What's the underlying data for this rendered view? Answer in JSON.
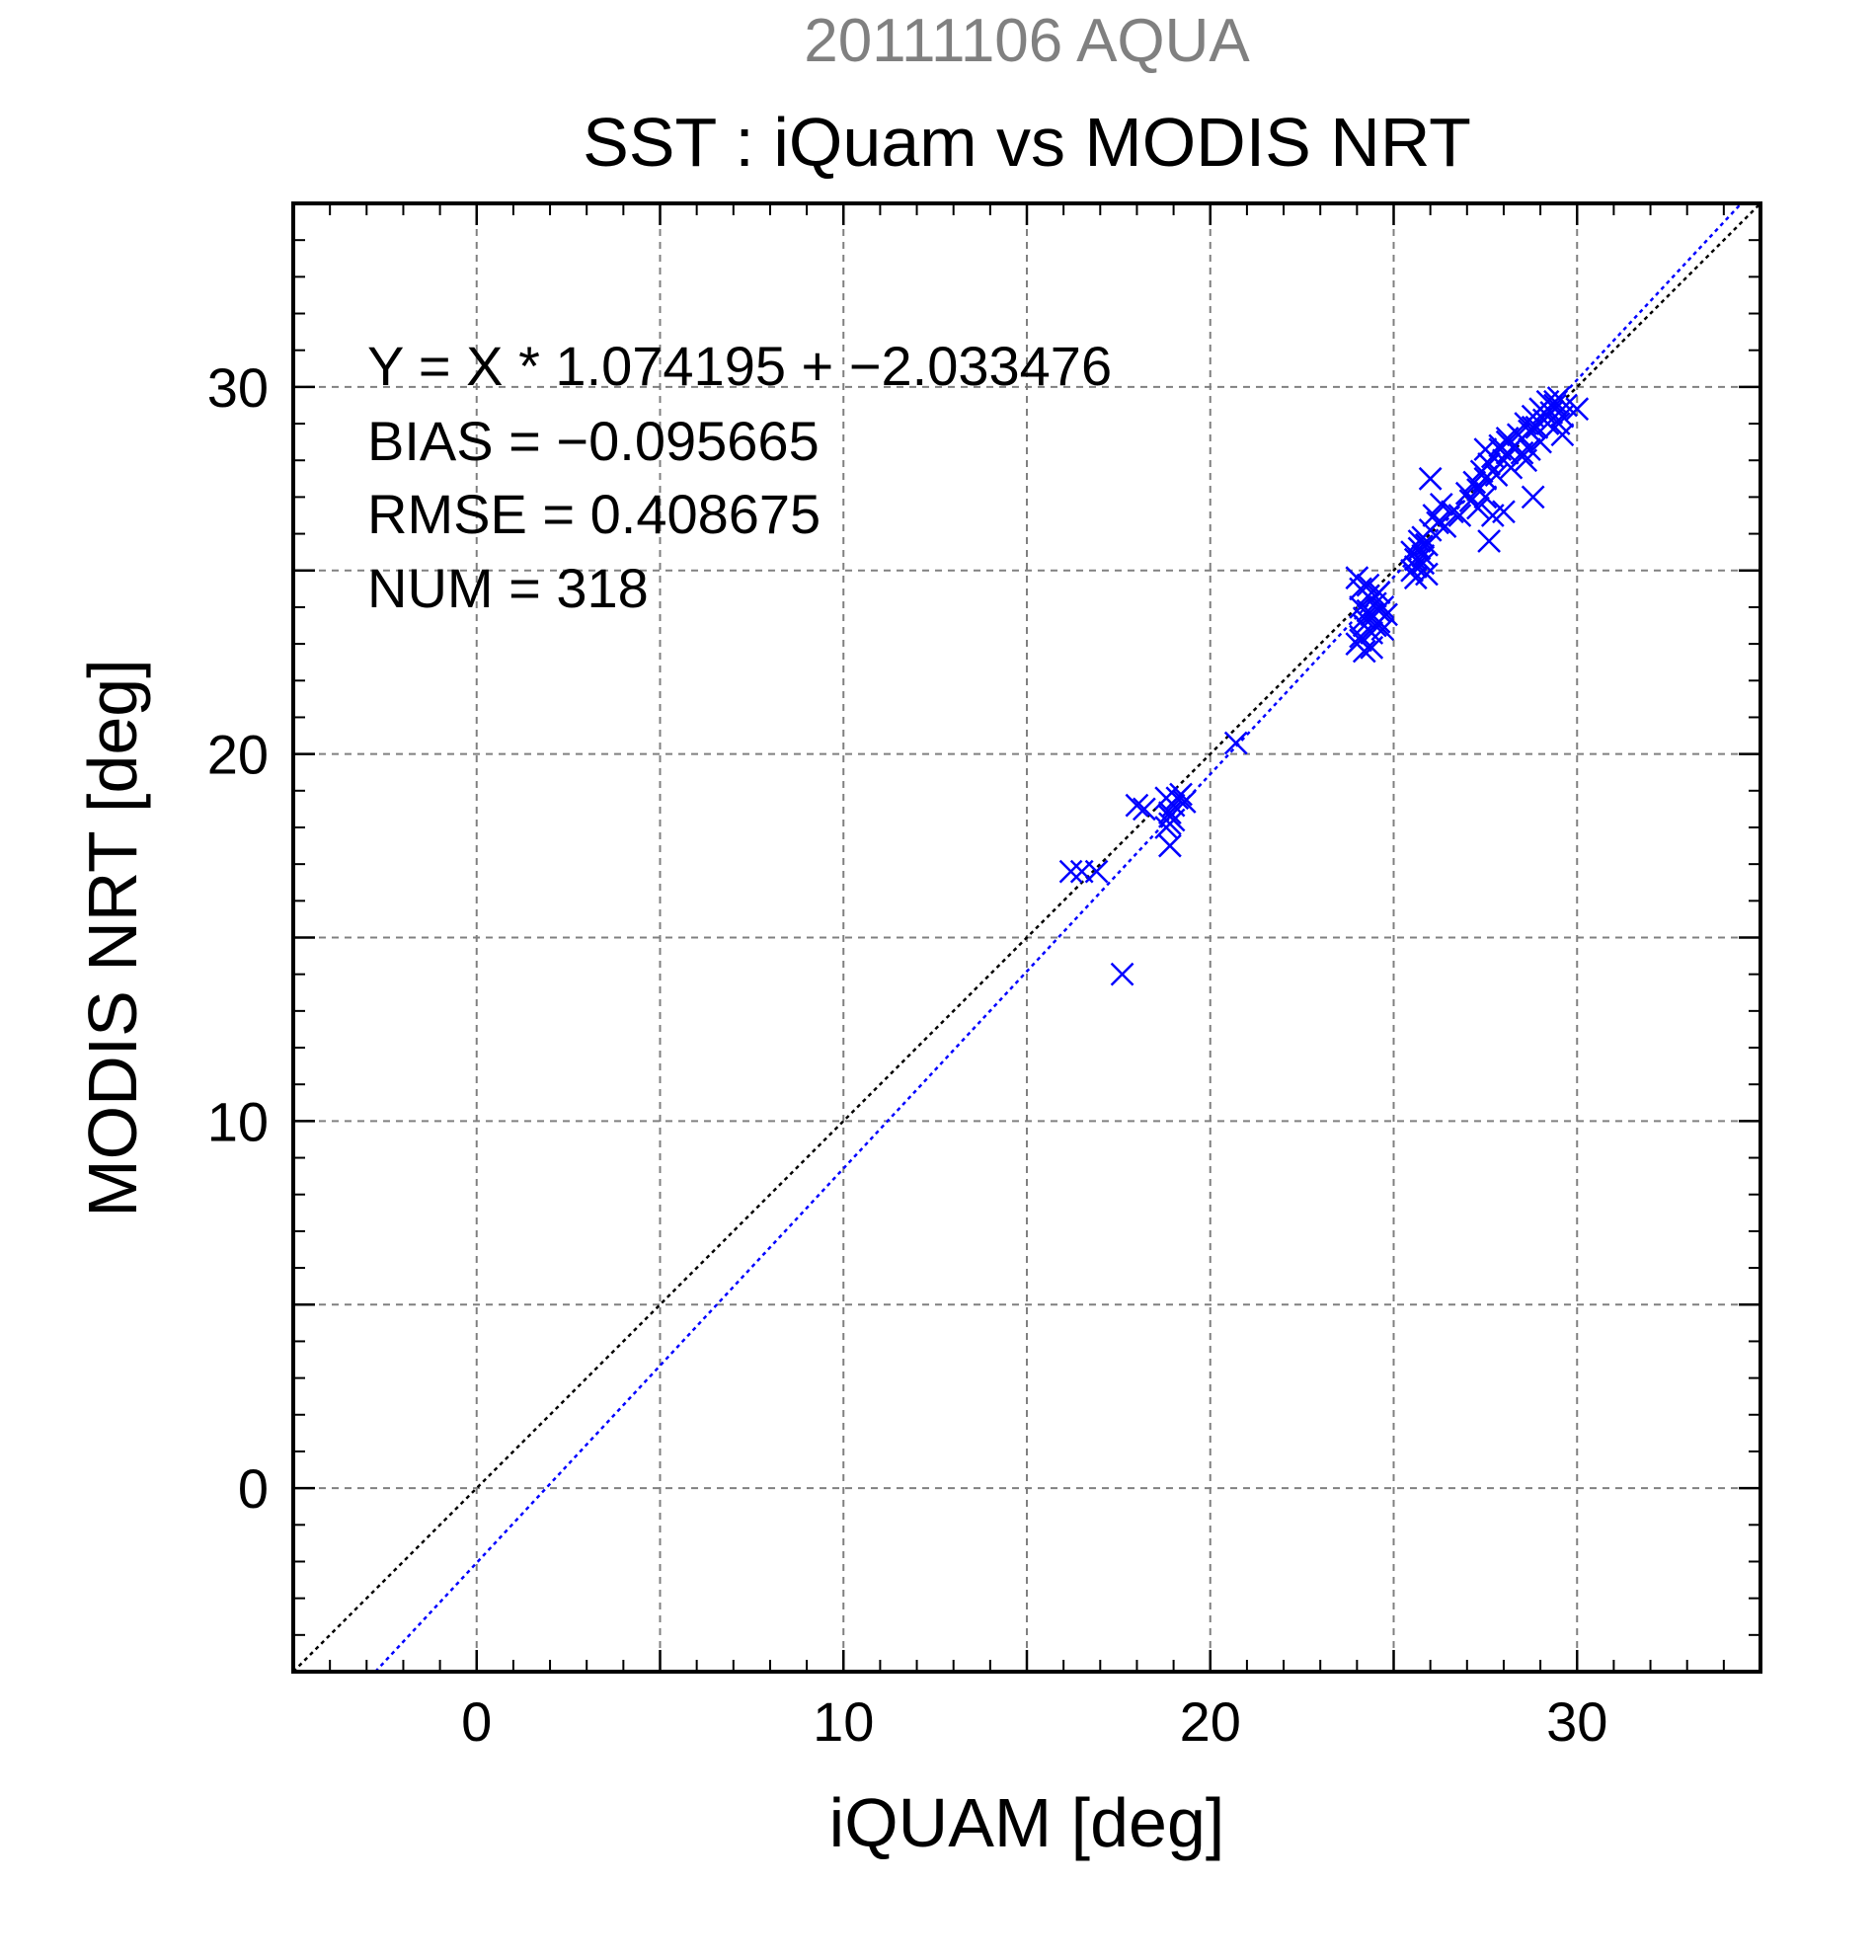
{
  "chart_data": {
    "type": "scatter",
    "title": "SST : iQuam vs MODIS NRT",
    "subtitle": "20111106 AQUA",
    "xlabel": "iQUAM [deg]",
    "ylabel": "MODIS NRT [deg]",
    "xlim": [
      -5,
      35
    ],
    "ylim": [
      -5,
      35
    ],
    "xticks": [
      0,
      10,
      20,
      30
    ],
    "yticks": [
      0,
      10,
      20,
      30
    ],
    "grid": true,
    "grid_step": 5,
    "stats": [
      "Y = X * 1.074195 + −2.033476",
      "BIAS = −0.095665",
      "RMSE = 0.408675",
      "NUM = 318"
    ],
    "fit": {
      "slope": 1.074195,
      "intercept": -2.033476
    },
    "colors": {
      "points": "#0000ff",
      "fit_line": "#0000ff",
      "identity_line": "#000000",
      "subtitle": "#808080",
      "grid": "#808080"
    },
    "series": [
      {
        "marker": "x",
        "x": [
          16.2,
          16.5,
          16.9,
          17.6,
          18.0,
          18.2,
          18.8,
          18.9,
          18.9,
          19.0,
          19.0,
          19.1,
          19.2,
          18.9,
          19.3,
          18.8,
          18.9,
          20.7,
          24.0,
          24.1,
          24.1,
          24.2,
          24.3,
          24.4,
          24.5,
          24.6,
          24.7,
          24.2,
          24.4,
          24.6,
          24.1,
          24.3,
          24.5,
          24.7,
          24.2,
          24.4,
          24.6,
          24.0,
          24.1,
          24.3,
          24.5,
          24.8,
          25.5,
          25.6,
          25.7,
          25.8,
          25.9,
          25.5,
          25.6,
          25.7,
          25.8,
          25.9,
          25.6,
          25.8,
          26.0,
          26.1,
          26.2,
          26.3,
          26.4,
          25.9,
          26.6,
          26.8,
          26.0,
          27.0,
          27.1,
          27.2,
          27.3,
          27.4,
          27.5,
          27.6,
          27.7,
          27.8,
          27.9,
          28.0,
          28.1,
          28.2,
          27.3,
          27.5,
          27.7,
          27.9,
          28.1,
          27.6,
          28.0,
          27.5,
          28.1,
          28.3,
          28.4,
          28.5,
          28.6,
          28.7,
          28.8,
          28.9,
          29.0,
          29.1,
          29.2,
          29.3,
          29.4,
          29.5,
          29.6,
          29.7,
          28.6,
          28.8,
          29.0,
          29.2,
          29.4,
          28.5,
          28.7,
          29.1,
          29.5,
          28.8,
          29.6,
          30.0
        ],
        "y": [
          16.8,
          16.8,
          16.8,
          14.0,
          18.6,
          18.5,
          18.0,
          17.5,
          18.3,
          18.6,
          18.2,
          18.8,
          18.9,
          18.4,
          18.7,
          18.8,
          18.1,
          20.3,
          23.0,
          23.2,
          24.0,
          23.5,
          24.3,
          23.8,
          24.1,
          23.6,
          24.0,
          22.8,
          23.3,
          23.9,
          24.5,
          24.6,
          24.3,
          23.4,
          23.7,
          22.9,
          24.4,
          24.8,
          23.1,
          23.9,
          23.5,
          23.8,
          25.0,
          25.3,
          25.6,
          25.2,
          24.9,
          25.5,
          25.1,
          25.8,
          25.4,
          25.7,
          24.8,
          25.9,
          26.1,
          26.5,
          26.3,
          26.8,
          26.2,
          25.7,
          26.6,
          26.5,
          27.5,
          27.1,
          26.9,
          27.4,
          27.2,
          27.7,
          27.5,
          27.9,
          28.1,
          27.6,
          28.3,
          28.0,
          28.5,
          27.8,
          26.7,
          27.0,
          26.5,
          28.4,
          28.2,
          25.8,
          26.6,
          28.3,
          28.6,
          28.4,
          28.7,
          28.2,
          29.0,
          28.8,
          29.2,
          28.9,
          29.4,
          29.1,
          29.6,
          29.3,
          29.5,
          29.7,
          29.2,
          29.5,
          28.0,
          27.0,
          28.5,
          29.0,
          29.6,
          28.6,
          28.3,
          29.3,
          29.0,
          28.9,
          28.7,
          29.4
        ]
      }
    ]
  }
}
